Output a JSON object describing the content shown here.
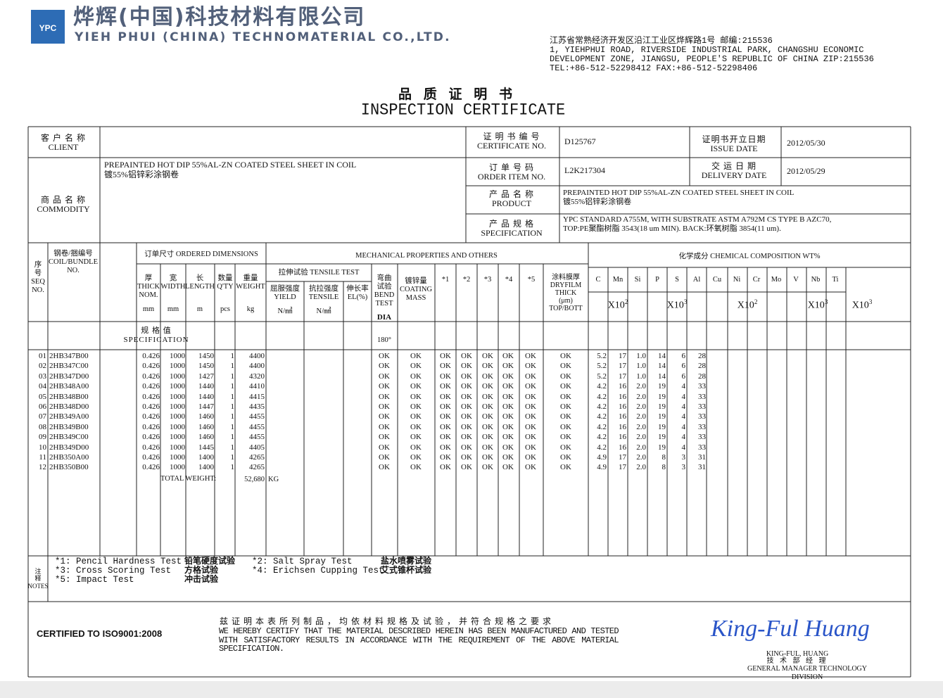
{
  "header": {
    "logo": "YPC",
    "company_cn": "烨辉(中国)科技材料有限公司",
    "company_en": "YIEH PHUI (CHINA) TECHNOMATERIAL CO.,LTD.",
    "address": [
      "江苏省常熟经济开发区沿江工业区烨辉路1号 邮编:215536",
      "1, YIEHPHUI ROAD, RIVERSIDE INDUSTRIAL PARK, CHANGSHU ECONOMIC",
      "DEVELOPMENT ZONE, JIANGSU, PEOPLE'S REPUBLIC OF CHINA ZIP:215536",
      "TEL:+86-512-52298412  FAX:+86-512-52298406"
    ]
  },
  "title": {
    "cn": "品 质 证 明 书",
    "en": "INSPECTION CERTIFICATE"
  },
  "info": {
    "client": {
      "label_cn": "客 户 名 称",
      "label_en": "CLIENT"
    },
    "certificate_no": {
      "label_cn": "证 明 书 编 号",
      "label_en": "CERTIFICATE NO.",
      "value": "D125767"
    },
    "issue_date": {
      "label_cn": "证明书开立日期",
      "label_en": "ISSUE DATE",
      "value": "2012/05/30"
    },
    "commodity": {
      "label_cn": "商 品 名 称",
      "label_en": "COMMODITY",
      "value": "PREPAINTED HOT DIP 55%AL-ZN COATED STEEL SHEET IN COIL\n镀55%铝锌彩涂钢卷"
    },
    "order_item_no": {
      "label_cn": "订 单 号 码",
      "label_en": "ORDER ITEM NO.",
      "value": "L2K217304"
    },
    "delivery_date": {
      "label_cn": "交 运 日 期",
      "label_en": "DELIVERY DATE",
      "value": "2012/05/29"
    },
    "product": {
      "label_cn": "产 品 名 称",
      "label_en": "PRODUCT",
      "value": "PREPAINTED HOT DIP 55%AL-ZN COATED STEEL SHEET IN COIL\n镀55%铝锌彩涂钢卷"
    },
    "specification": {
      "label_cn": "产 品 规 格",
      "label_en": "SPECIFICATION",
      "value": "YPC STANDARD A755M, WITH SUBSTRATE ASTM A792M CS TYPE B AZC70,\nTOP:PE聚酯树脂 3543(18 um MIN).  BACK:环氧树脂 3854(11 um)."
    }
  },
  "table": {
    "headers": {
      "seq": "序\n号\nSEQ\nNO.",
      "coil": "钢卷/捆编号\nCOIL/BUNDLE\nNO.",
      "ordered": "订单尺寸 ORDERED DIMENSIONS",
      "thick": "厚\nTHICK\nNOM.",
      "width": "宽\nWIDTH",
      "length": "长\nLENGTH",
      "qty": "数量\nQ'TY",
      "weight": "重量\nWEIGHT",
      "units": [
        "mm",
        "mm",
        "m",
        "pcs",
        "kg"
      ],
      "mechanical": "MECHANICAL PROPERTIES AND OTHERS",
      "tensile_test": "拉伸试验 TENSILE TEST",
      "yield": "屈服强度\nYIELD",
      "tensile": "抗拉强度\nTENSILE",
      "el": "伸长率\nEL(%)",
      "stress_units": [
        "N/㎟",
        "N/㎟"
      ],
      "bend": "弯曲\n试验\nBEND\nTEST",
      "dia": "DIA",
      "coating": "镀锌量\nCOATING\nMASS",
      "stars": [
        "*1",
        "*2",
        "*3",
        "*4",
        "*5"
      ],
      "dryfilm": "涂料膜厚\nDRYFILM\nTHICK\n(μm)\nTOP/BOTT",
      "chemical": "化学成分 CHEMICAL COMPOSITION WT%",
      "elements": [
        "C",
        "Mn",
        "Si",
        "P",
        "S",
        "Al",
        "Cu",
        "Ni",
        "Cr",
        "Mo",
        "V",
        "Nb",
        "Ti"
      ],
      "multipliers": [
        {
          "base": "X10",
          "exp": "2"
        },
        {
          "base": "X10",
          "exp": "3"
        },
        {
          "base": "X10",
          "exp": "2"
        },
        {
          "base": "X10",
          "exp": "3"
        },
        {
          "base": "X10",
          "exp": "3"
        }
      ]
    },
    "spec_label": "规 格 值\nSPECIFICATION",
    "bend_spec": "180°",
    "rows": [
      [
        "01",
        "2HB347B00",
        "0.426",
        "1000",
        "1450",
        "1",
        "4400",
        "OK",
        "OK",
        "OK",
        "OK",
        "OK",
        "OK",
        "OK",
        "OK",
        "5.2",
        "17",
        "1.0",
        "14",
        "6",
        "28"
      ],
      [
        "02",
        "2HB347C00",
        "0.426",
        "1000",
        "1450",
        "1",
        "4400",
        "OK",
        "OK",
        "OK",
        "OK",
        "OK",
        "OK",
        "OK",
        "OK",
        "5.2",
        "17",
        "1.0",
        "14",
        "6",
        "28"
      ],
      [
        "03",
        "2HB347D00",
        "0.426",
        "1000",
        "1427",
        "1",
        "4320",
        "OK",
        "OK",
        "OK",
        "OK",
        "OK",
        "OK",
        "OK",
        "OK",
        "5.2",
        "17",
        "1.0",
        "14",
        "6",
        "28"
      ],
      [
        "04",
        "2HB348A00",
        "0.426",
        "1000",
        "1440",
        "1",
        "4410",
        "OK",
        "OK",
        "OK",
        "OK",
        "OK",
        "OK",
        "OK",
        "OK",
        "4.2",
        "16",
        "2.0",
        "19",
        "4",
        "33"
      ],
      [
        "05",
        "2HB348B00",
        "0.426",
        "1000",
        "1440",
        "1",
        "4415",
        "OK",
        "OK",
        "OK",
        "OK",
        "OK",
        "OK",
        "OK",
        "OK",
        "4.2",
        "16",
        "2.0",
        "19",
        "4",
        "33"
      ],
      [
        "06",
        "2HB348D00",
        "0.426",
        "1000",
        "1447",
        "1",
        "4435",
        "OK",
        "OK",
        "OK",
        "OK",
        "OK",
        "OK",
        "OK",
        "OK",
        "4.2",
        "16",
        "2.0",
        "19",
        "4",
        "33"
      ],
      [
        "07",
        "2HB349A00",
        "0.426",
        "1000",
        "1460",
        "1",
        "4455",
        "OK",
        "OK",
        "OK",
        "OK",
        "OK",
        "OK",
        "OK",
        "OK",
        "4.2",
        "16",
        "2.0",
        "19",
        "4",
        "33"
      ],
      [
        "08",
        "2HB349B00",
        "0.426",
        "1000",
        "1460",
        "1",
        "4455",
        "OK",
        "OK",
        "OK",
        "OK",
        "OK",
        "OK",
        "OK",
        "OK",
        "4.2",
        "16",
        "2.0",
        "19",
        "4",
        "33"
      ],
      [
        "09",
        "2HB349C00",
        "0.426",
        "1000",
        "1460",
        "1",
        "4455",
        "OK",
        "OK",
        "OK",
        "OK",
        "OK",
        "OK",
        "OK",
        "OK",
        "4.2",
        "16",
        "2.0",
        "19",
        "4",
        "33"
      ],
      [
        "10",
        "2HB349D00",
        "0.426",
        "1000",
        "1445",
        "1",
        "4405",
        "OK",
        "OK",
        "OK",
        "OK",
        "OK",
        "OK",
        "OK",
        "OK",
        "4.2",
        "16",
        "2.0",
        "19",
        "4",
        "33"
      ],
      [
        "11",
        "2HB350A00",
        "0.426",
        "1000",
        "1400",
        "1",
        "4265",
        "OK",
        "OK",
        "OK",
        "OK",
        "OK",
        "OK",
        "OK",
        "OK",
        "4.9",
        "17",
        "2.0",
        "8",
        "3",
        "31"
      ],
      [
        "12",
        "2HB350B00",
        "0.426",
        "1000",
        "1400",
        "1",
        "4265",
        "OK",
        "OK",
        "OK",
        "OK",
        "OK",
        "OK",
        "OK",
        "OK",
        "4.9",
        "17",
        "2.0",
        "8",
        "3",
        "31"
      ]
    ],
    "total": {
      "label": "TOTAL WEIGHT:",
      "value": "52,680",
      "unit": "KG"
    }
  },
  "notes": {
    "label": "注\n释\nNOTES",
    "items": [
      {
        "text": "*1: Pencil Hardness Test",
        "cn": "铅笔硬度试验"
      },
      {
        "text": "*2: Salt Spray Test",
        "cn": "盐水喷雾试验"
      },
      {
        "text": "*3: Cross Scoring Test",
        "cn": "方格试验"
      },
      {
        "text": "*4: Erichsen Cupping Test",
        "cn": "艾式锥杯试验"
      },
      {
        "text": "*5: Impact Test",
        "cn": "冲击试验"
      }
    ]
  },
  "footer": {
    "certified": "CERTIFIED TO ISO9001:2008",
    "statement_cn": "兹 证 明 本 表 所 列 制 品 ， 均 依 材 料 规 格 及 试 验 ， 并 符 合 规 格 之 要 求",
    "statement_en": "WE HEREBY CERTIFY THAT THE MATERIAL DESCRIBED HEREIN HAS BEEN MANUFACTURED AND TESTED WITH SATISFACTORY RESULTS IN ACCORDANCE WITH THE REQUIREMENT OF THE ABOVE MATERIAL SPECIFICATION.",
    "signature": "King-Ful Huang",
    "name": "KING-FUL, HUANG",
    "title_cn": "技 术 部 经 理",
    "title_en": "GENERAL MANAGER TECHNOLOGY DIVISION"
  }
}
